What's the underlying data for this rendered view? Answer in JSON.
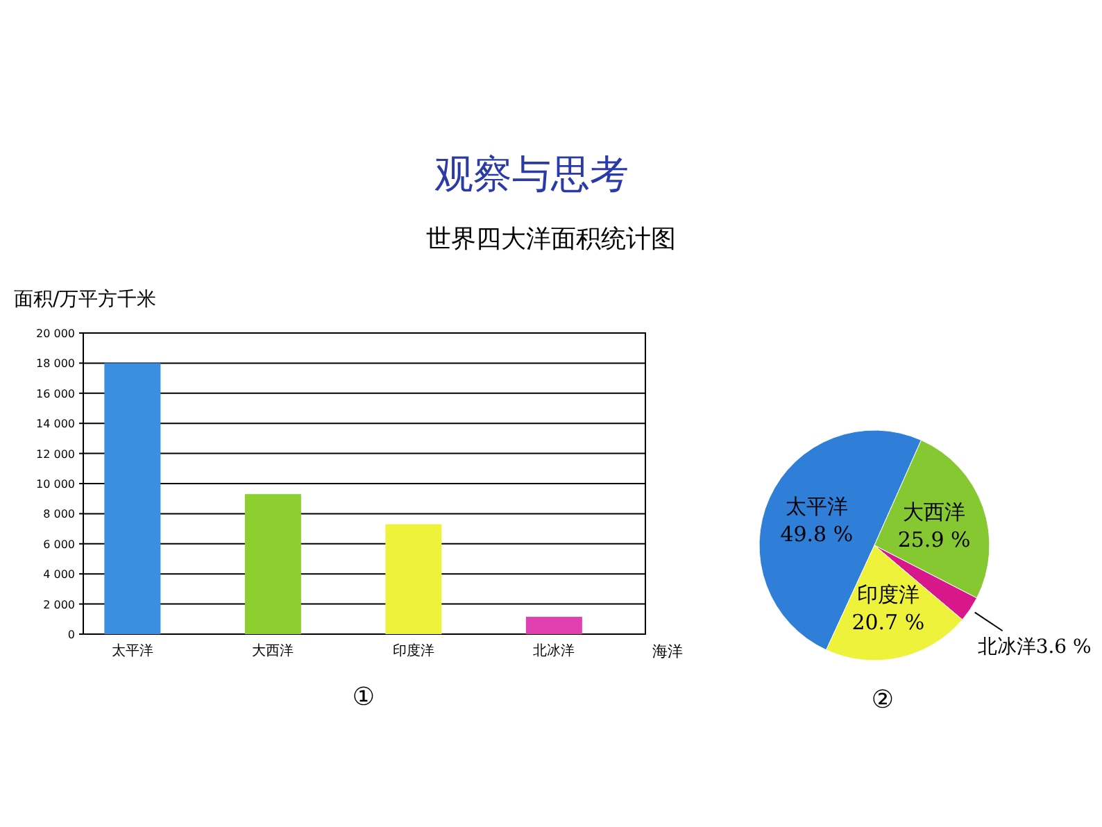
{
  "chart_data": [
    {
      "type": "bar",
      "title": "世界四大洋面积统计图",
      "annotations": [
        "观察与思考",
        "①"
      ],
      "ylabel": "面积/万平方千米",
      "xlabel": "海洋",
      "categories": [
        "太平洋",
        "大西洋",
        "印度洋",
        "北冰洋"
      ],
      "values": [
        18000,
        9300,
        7300,
        1150
      ],
      "colors": [
        "#3a8fe0",
        "#8ccf2e",
        "#eef23a",
        "#e040b0"
      ],
      "ylim": [
        0,
        20000
      ],
      "yticks": [
        0,
        {
          "value": 2000,
          "label": "2 000"
        },
        {
          "value": 4000,
          "label": "4 000"
        },
        {
          "value": 6000,
          "label": "6 000"
        },
        {
          "value": 8000,
          "label": "8 000"
        },
        {
          "value": 10000,
          "label": "10 000"
        },
        {
          "value": 12000,
          "label": "12 000"
        },
        {
          "value": 14000,
          "label": "14 000"
        },
        {
          "value": 16000,
          "label": "16 000"
        },
        {
          "value": 18000,
          "label": "18 000"
        },
        {
          "value": 20000,
          "label": "20 000"
        }
      ],
      "grid": "y"
    },
    {
      "type": "pie",
      "annotations": [
        "②"
      ],
      "categories": [
        "太平洋",
        "大西洋",
        "北冰洋",
        "印度洋"
      ],
      "values": [
        49.8,
        25.9,
        3.6,
        20.7
      ],
      "value_labels": [
        "49.8 %",
        "25.9 %",
        "3.6 %",
        "20.7 %"
      ],
      "colors": [
        "#2f7fd8",
        "#86c832",
        "#d8188a",
        "#eef23a"
      ]
    }
  ]
}
